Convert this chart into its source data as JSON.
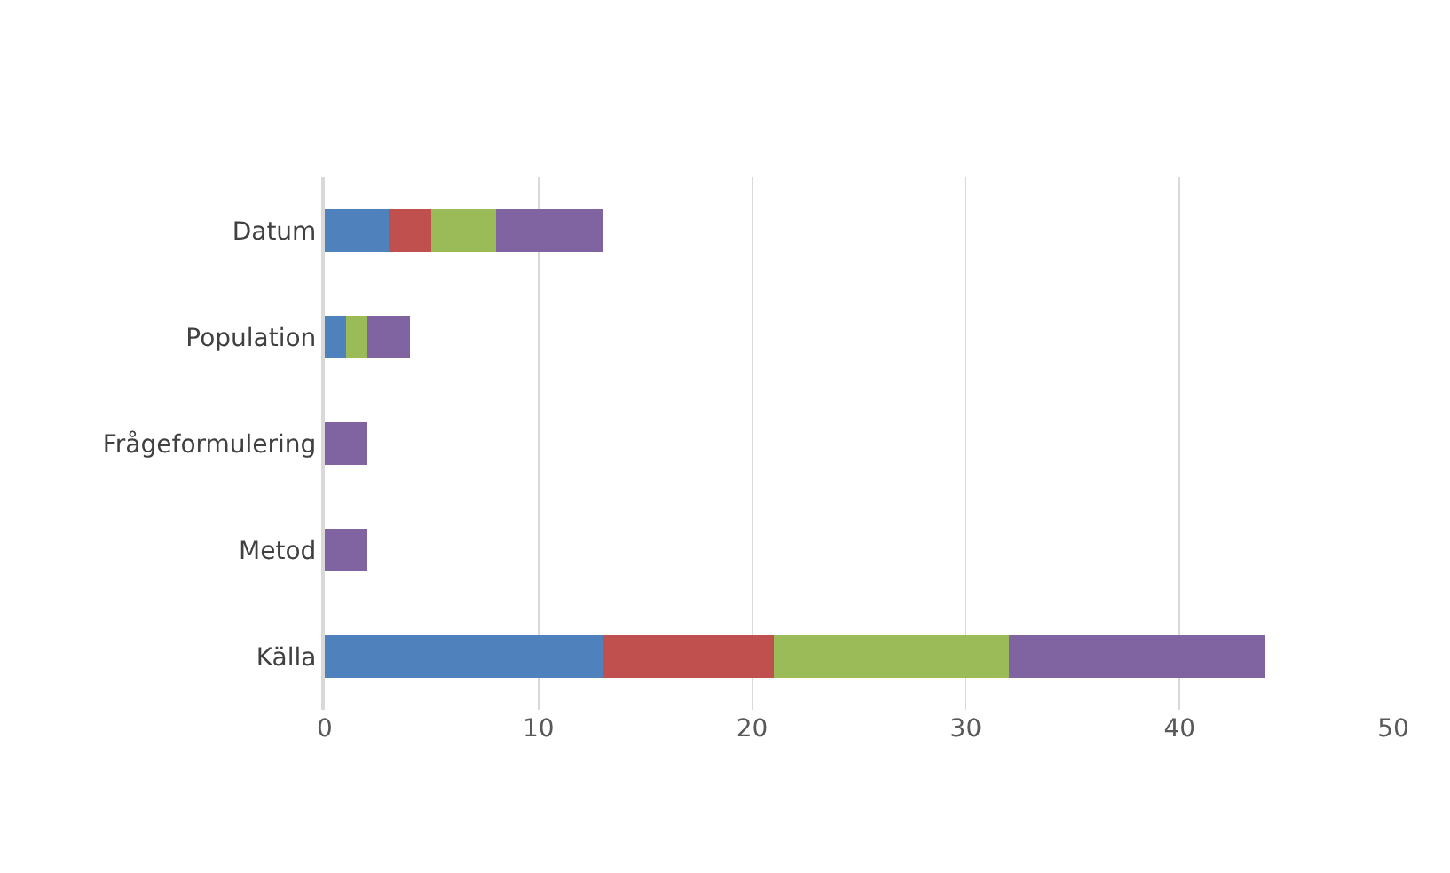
{
  "chart_data": {
    "type": "bar",
    "orientation": "horizontal",
    "stacked": true,
    "categories": [
      "Datum",
      "Population",
      "Frågeformulering",
      "Metod",
      "Källa"
    ],
    "series": [
      {
        "color": "#4f81bd",
        "values": [
          3,
          1,
          0,
          0,
          13
        ]
      },
      {
        "color": "#c0504d",
        "values": [
          2,
          0,
          0,
          0,
          8
        ]
      },
      {
        "color": "#9bbb59",
        "values": [
          3,
          1,
          0,
          0,
          11
        ]
      },
      {
        "color": "#8064a2",
        "values": [
          5,
          2,
          2,
          2,
          12
        ]
      }
    ],
    "xlim": [
      0,
      50
    ],
    "xticks": [
      0,
      10,
      20,
      30,
      40,
      50
    ],
    "grid": "x"
  }
}
